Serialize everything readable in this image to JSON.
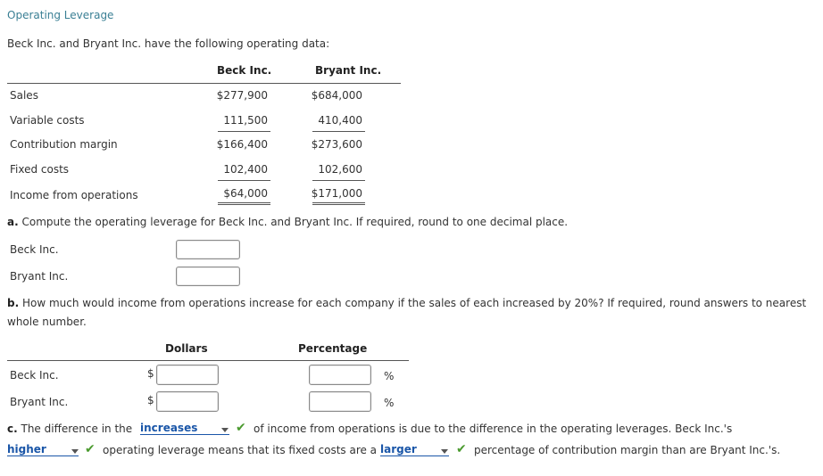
{
  "title": "Operating Leverage",
  "intro": "Beck Inc. and Bryant Inc. have the following operating data:",
  "table": {
    "col1": "Beck Inc.",
    "col2": "Bryant Inc.",
    "rows": [
      {
        "label": "Sales",
        "beck": "$277,900",
        "bryant": "$684,000"
      },
      {
        "label": "Variable costs",
        "beck": "111,500",
        "bryant": "410,400"
      },
      {
        "label": "Contribution margin",
        "beck": "$166,400",
        "bryant": "$273,600"
      },
      {
        "label": "Fixed costs",
        "beck": "102,400",
        "bryant": "102,600"
      },
      {
        "label": "Income from operations",
        "beck": "$64,000",
        "bryant": "$171,000"
      }
    ]
  },
  "part_a": {
    "letter": "a.",
    "question": "Compute the operating leverage for Beck Inc. and Bryant Inc. If required, round to one decimal place.",
    "rows": [
      {
        "label": "Beck Inc.",
        "value": ""
      },
      {
        "label": "Bryant Inc.",
        "value": ""
      }
    ]
  },
  "part_b": {
    "letter": "b.",
    "question_line1": "How much would income from operations increase for each company if the sales of each increased by 20%? If required, round answers to nearest",
    "question_line2": "whole number.",
    "col_dollars": "Dollars",
    "col_percentage": "Percentage",
    "currency_symbol": "$",
    "percent_symbol": "%",
    "rows": [
      {
        "label": "Beck Inc.",
        "dollars": "",
        "percentage": ""
      },
      {
        "label": "Bryant Inc.",
        "dollars": "",
        "percentage": ""
      }
    ]
  },
  "part_c": {
    "letter": "c.",
    "text1": "The difference in the",
    "select1": "increases",
    "text2": "of income from operations is due to the difference in the operating leverages. Beck Inc.'s",
    "select2": "higher",
    "text3": "operating leverage means that its fixed costs are a",
    "select3": "larger",
    "text4": "percentage of contribution margin than are Bryant Inc.'s.",
    "check_glyph": "✔"
  },
  "colors": {
    "title": "#3a7f94",
    "select": "#1a56a8",
    "check": "#4a9a2e"
  }
}
